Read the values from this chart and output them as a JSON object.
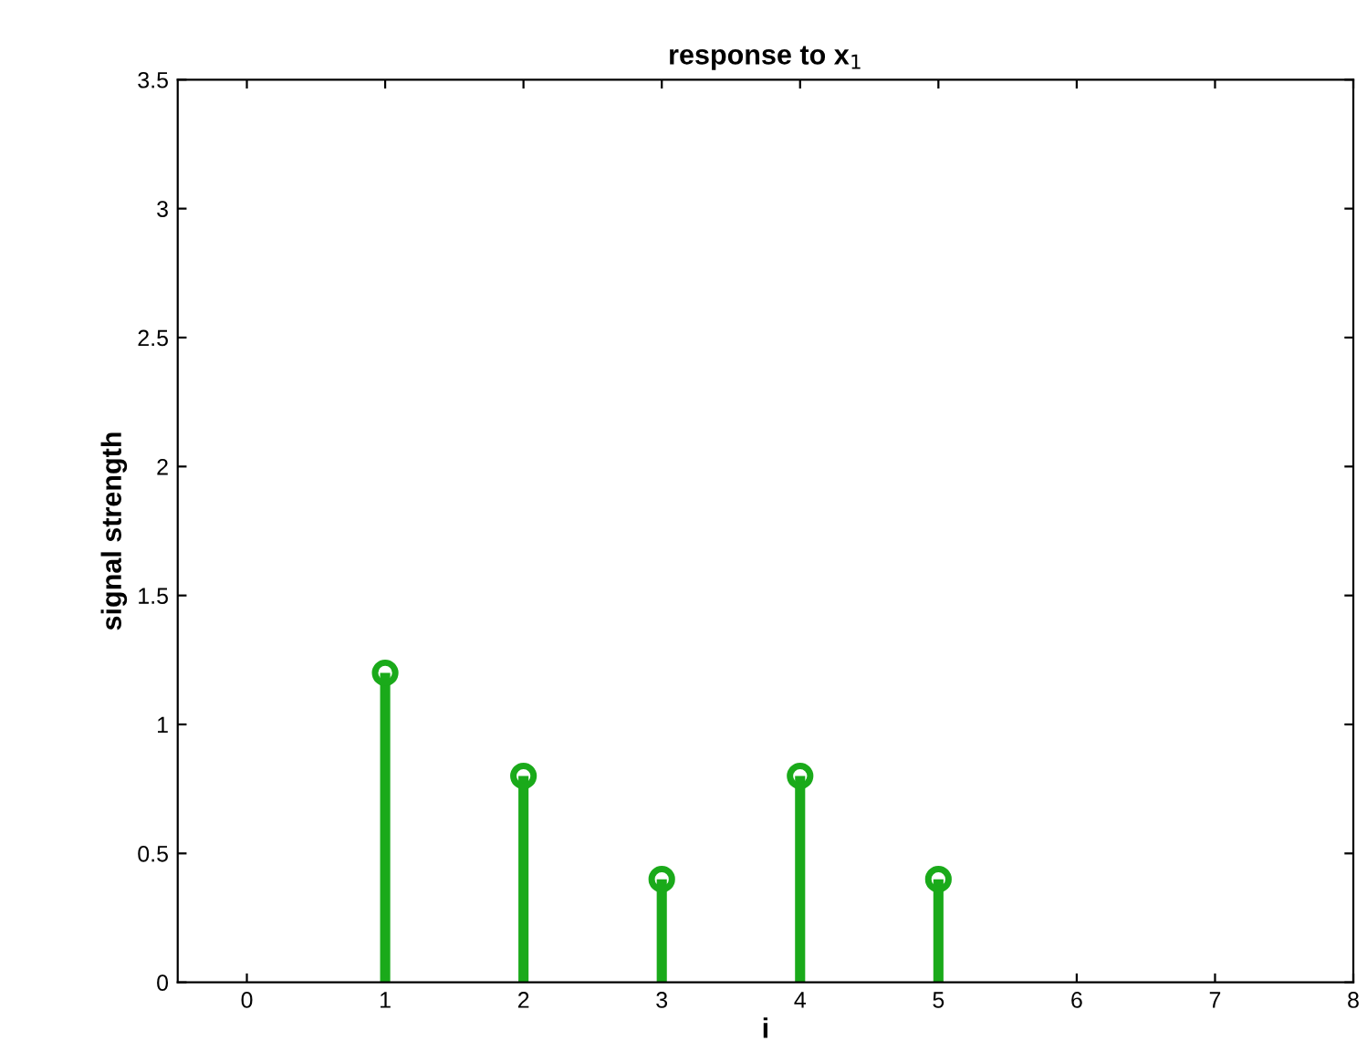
{
  "chart_data": {
    "type": "lollipop",
    "title": "response to x$_{1}$",
    "xlabel": "i",
    "ylabel": "signal strength",
    "x": [
      1,
      2,
      3,
      4,
      5
    ],
    "series": [
      {
        "color": "#1aaa1a",
        "values": [
          1.2,
          0.8,
          0.4,
          0.8,
          0.4
        ]
      }
    ],
    "xlim": [
      -0.5,
      8
    ],
    "xticks": [
      0,
      1,
      2,
      3,
      4,
      5,
      6,
      7,
      8
    ],
    "ylim": [
      0,
      3.5
    ],
    "yticks": [
      0,
      0.5,
      1,
      1.5,
      2,
      2.5,
      3,
      3.5
    ],
    "grid": false,
    "legend": false,
    "marker": "circle"
  }
}
